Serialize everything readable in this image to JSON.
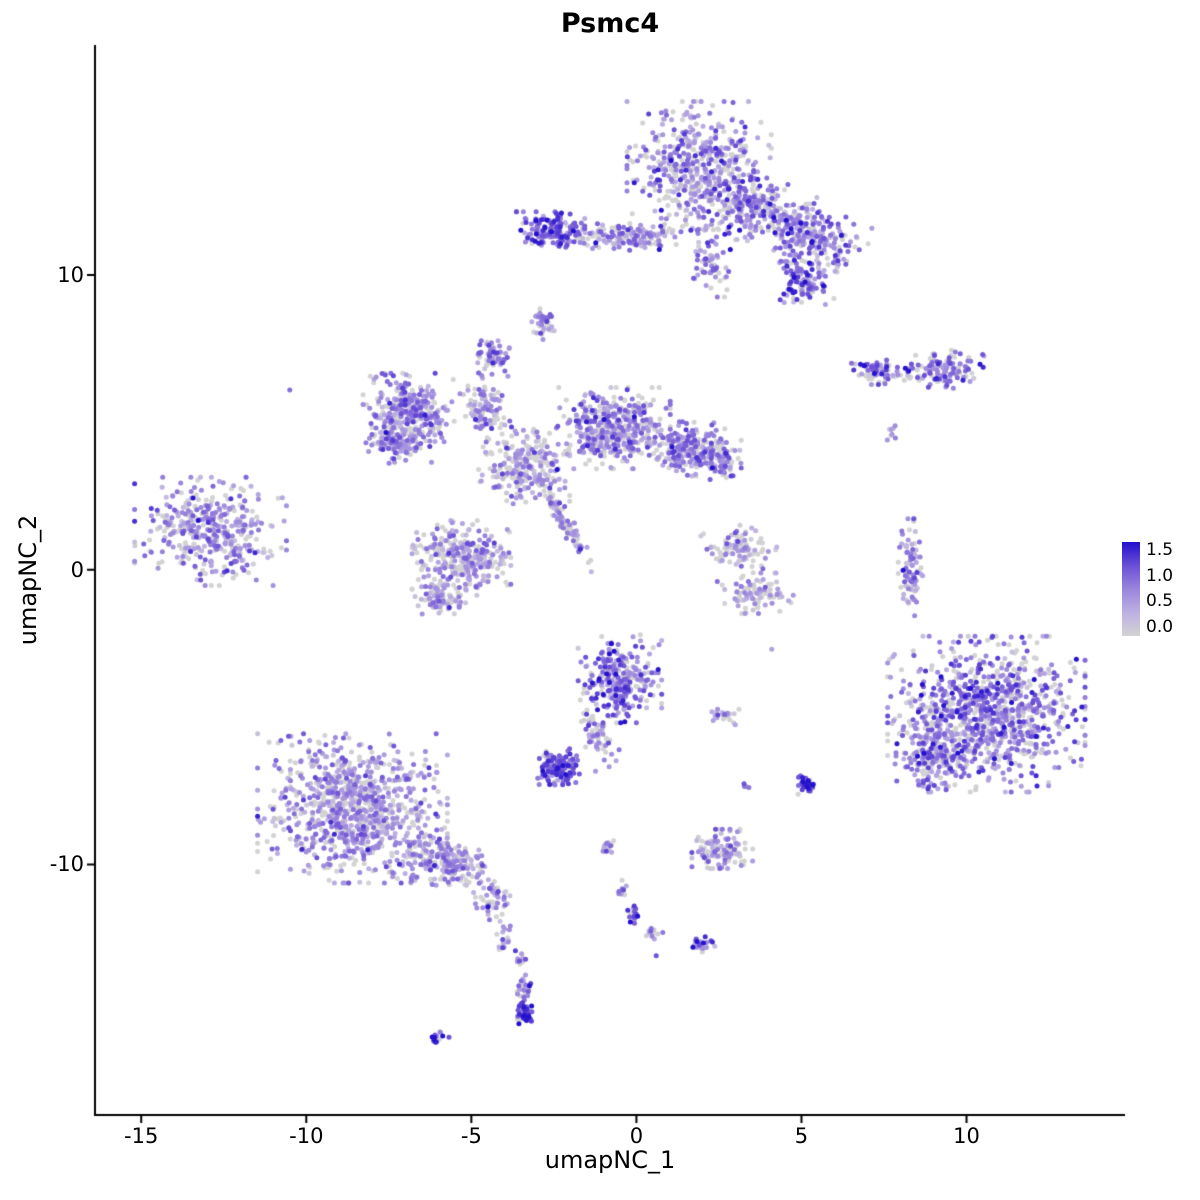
{
  "title": "Psmc4",
  "chart_data": {
    "type": "scatter",
    "title": "Psmc4",
    "xlabel": "umapNC_1",
    "ylabel": "umapNC_2",
    "xlim": [
      -16.4,
      14.8
    ],
    "ylim": [
      -18.5,
      17.8
    ],
    "x_ticks": [
      -15,
      -10,
      -5,
      0,
      5,
      10
    ],
    "y_ticks": [
      10,
      0,
      -10
    ],
    "grid": false,
    "background": "#FFFFFF",
    "axis_color": "#000000",
    "point_radius": 2.5,
    "seed": 20240917,
    "legend": {
      "position": "right",
      "min": 0.0,
      "max": 1.5,
      "tick_labels": [
        "1.5",
        "1.0",
        "0.5",
        "0.0"
      ],
      "gradient_stops": [
        "#D3D3D3",
        "#BDB0E2",
        "#9A85DC",
        "#6B4FD6",
        "#2410CE"
      ]
    },
    "clusters_format": "cx,cy=center (data coords); sx,sy=stddev; rot=deg; n=points; m,s=mean/sd expression (0-1.5); g=fraction zero-expression grey cells",
    "clusters": [
      {
        "name": "top-main",
        "cx": 1.9,
        "cy": 13.7,
        "sx": 0.95,
        "sy": 0.95,
        "rot": 0,
        "n": 520,
        "m": 0.7,
        "s": 0.35,
        "g": 0.3
      },
      {
        "name": "top-mid-right",
        "cx": 3.6,
        "cy": 12.2,
        "sx": 0.7,
        "sy": 0.5,
        "rot": -20,
        "n": 220,
        "m": 0.7,
        "s": 0.35,
        "g": 0.3
      },
      {
        "name": "top-right-wing",
        "cx": 5.3,
        "cy": 11.3,
        "sx": 0.75,
        "sy": 0.5,
        "rot": -25,
        "n": 230,
        "m": 0.7,
        "s": 0.35,
        "g": 0.28
      },
      {
        "name": "top-right-knob",
        "cx": 5.1,
        "cy": 9.8,
        "sx": 0.4,
        "sy": 0.35,
        "rot": 0,
        "n": 120,
        "m": 0.85,
        "s": 0.35,
        "g": 0.22
      },
      {
        "name": "top-left-arm",
        "cx": -2.6,
        "cy": 11.5,
        "sx": 0.45,
        "sy": 0.28,
        "rot": 0,
        "n": 150,
        "m": 1.0,
        "s": 0.3,
        "g": 0.12
      },
      {
        "name": "top-bridge",
        "cx": -0.3,
        "cy": 11.3,
        "sx": 0.95,
        "sy": 0.2,
        "rot": 0,
        "n": 170,
        "m": 0.7,
        "s": 0.3,
        "g": 0.3
      },
      {
        "name": "top-descender",
        "cx": 2.2,
        "cy": 10.4,
        "sx": 0.28,
        "sy": 0.5,
        "rot": 0,
        "n": 60,
        "m": 0.75,
        "s": 0.3,
        "g": 0.3
      },
      {
        "name": "top-left-dot",
        "cx": -2.8,
        "cy": 8.4,
        "sx": 0.16,
        "sy": 0.28,
        "rot": 0,
        "n": 35,
        "m": 0.7,
        "s": 0.3,
        "g": 0.3
      },
      {
        "name": "upper-right-a",
        "cx": 7.3,
        "cy": 6.7,
        "sx": 0.4,
        "sy": 0.18,
        "rot": 0,
        "n": 70,
        "m": 0.8,
        "s": 0.35,
        "g": 0.28
      },
      {
        "name": "upper-right-b",
        "cx": 9.3,
        "cy": 6.8,
        "sx": 0.6,
        "sy": 0.28,
        "rot": 0,
        "n": 120,
        "m": 0.8,
        "s": 0.35,
        "g": 0.28
      },
      {
        "name": "upper-right-specks",
        "cx": 7.8,
        "cy": 4.7,
        "sx": 0.1,
        "sy": 0.2,
        "rot": 0,
        "n": 8,
        "m": 0.5,
        "s": 0.25,
        "g": 0.4
      },
      {
        "name": "mid-left-lobe",
        "cx": -6.9,
        "cy": 5.4,
        "sx": 0.6,
        "sy": 0.55,
        "rot": 0,
        "n": 300,
        "m": 0.65,
        "s": 0.3,
        "g": 0.3
      },
      {
        "name": "mid-left-lower",
        "cx": -7.2,
        "cy": 4.3,
        "sx": 0.45,
        "sy": 0.3,
        "rot": 0,
        "n": 130,
        "m": 0.65,
        "s": 0.3,
        "g": 0.3
      },
      {
        "name": "mid-top-knob",
        "cx": -4.4,
        "cy": 7.2,
        "sx": 0.24,
        "sy": 0.3,
        "rot": 0,
        "n": 70,
        "m": 0.75,
        "s": 0.3,
        "g": 0.28
      },
      {
        "name": "mid-stem",
        "cx": -4.6,
        "cy": 5.4,
        "sx": 0.28,
        "sy": 0.55,
        "rot": 15,
        "n": 110,
        "m": 0.6,
        "s": 0.3,
        "g": 0.33
      },
      {
        "name": "mid-center",
        "cx": -3.4,
        "cy": 3.5,
        "sx": 0.6,
        "sy": 0.55,
        "rot": 0,
        "n": 240,
        "m": 0.55,
        "s": 0.3,
        "g": 0.38
      },
      {
        "name": "mid-right-lobe",
        "cx": -0.7,
        "cy": 4.8,
        "sx": 0.75,
        "sy": 0.6,
        "rot": 0,
        "n": 430,
        "m": 0.65,
        "s": 0.3,
        "g": 0.3
      },
      {
        "name": "mid-right-ext",
        "cx": 1.6,
        "cy": 4.1,
        "sx": 0.55,
        "sy": 0.4,
        "rot": 0,
        "n": 220,
        "m": 0.65,
        "s": 0.3,
        "g": 0.3
      },
      {
        "name": "mid-right-tip",
        "cx": 2.6,
        "cy": 3.7,
        "sx": 0.25,
        "sy": 0.3,
        "rot": 0,
        "n": 70,
        "m": 0.75,
        "s": 0.3,
        "g": 0.28
      },
      {
        "name": "mid-lower-lobe",
        "cx": -5.3,
        "cy": 0.4,
        "sx": 0.65,
        "sy": 0.55,
        "rot": 0,
        "n": 320,
        "m": 0.55,
        "s": 0.3,
        "g": 0.38
      },
      {
        "name": "mid-lower-tail",
        "cx": -5.9,
        "cy": -1.0,
        "sx": 0.35,
        "sy": 0.22,
        "rot": 0,
        "n": 90,
        "m": 0.55,
        "s": 0.3,
        "g": 0.35
      },
      {
        "name": "mid-streak",
        "cx": -2.2,
        "cy": 1.7,
        "sx": 0.85,
        "sy": 0.1,
        "rot": -62,
        "n": 90,
        "m": 0.6,
        "s": 0.3,
        "g": 0.33
      },
      {
        "name": "far-left",
        "cx": -12.9,
        "cy": 1.3,
        "sx": 1.0,
        "sy": 0.8,
        "rot": 0,
        "n": 400,
        "m": 0.62,
        "s": 0.3,
        "g": 0.3
      },
      {
        "name": "center-right-upper",
        "cx": 3.1,
        "cy": 0.7,
        "sx": 0.5,
        "sy": 0.35,
        "rot": 0,
        "n": 100,
        "m": 0.5,
        "s": 0.28,
        "g": 0.45
      },
      {
        "name": "center-right-lower",
        "cx": 3.6,
        "cy": -0.8,
        "sx": 0.5,
        "sy": 0.3,
        "rot": 0,
        "n": 90,
        "m": 0.5,
        "s": 0.28,
        "g": 0.45
      },
      {
        "name": "right-column",
        "cx": 8.3,
        "cy": 0.0,
        "sx": 0.16,
        "sy": 0.75,
        "rot": 0,
        "n": 90,
        "m": 0.65,
        "s": 0.35,
        "g": 0.3
      },
      {
        "name": "right-large",
        "cx": 10.6,
        "cy": -4.9,
        "sx": 1.3,
        "sy": 1.15,
        "rot": 0,
        "n": 950,
        "m": 0.8,
        "s": 0.35,
        "g": 0.27
      },
      {
        "name": "right-large-sub",
        "cx": 8.9,
        "cy": -6.4,
        "sx": 0.45,
        "sy": 0.45,
        "rot": 0,
        "n": 140,
        "m": 0.75,
        "s": 0.3,
        "g": 0.3
      },
      {
        "name": "center-lower",
        "cx": -0.5,
        "cy": -3.7,
        "sx": 0.55,
        "sy": 0.65,
        "rot": 0,
        "n": 280,
        "m": 0.8,
        "s": 0.35,
        "g": 0.25
      },
      {
        "name": "center-lower-tail",
        "cx": -1.2,
        "cy": -5.6,
        "sx": 0.2,
        "sy": 0.5,
        "rot": 20,
        "n": 60,
        "m": 0.65,
        "s": 0.3,
        "g": 0.3
      },
      {
        "name": "center-dense-blob",
        "cx": -2.4,
        "cy": -6.7,
        "sx": 0.3,
        "sy": 0.27,
        "rot": 0,
        "n": 140,
        "m": 0.95,
        "s": 0.35,
        "g": 0.14
      },
      {
        "name": "small-pair",
        "cx": 2.7,
        "cy": -5.0,
        "sx": 0.22,
        "sy": 0.13,
        "rot": 0,
        "n": 25,
        "m": 0.55,
        "s": 0.3,
        "g": 0.35
      },
      {
        "name": "dark-dot-right",
        "cx": 5.1,
        "cy": -7.3,
        "sx": 0.16,
        "sy": 0.15,
        "rot": 0,
        "n": 30,
        "m": 1.25,
        "s": 0.25,
        "g": 0.08
      },
      {
        "name": "tiny-dot",
        "cx": 3.3,
        "cy": -7.4,
        "sx": 0.08,
        "sy": 0.06,
        "rot": 0,
        "n": 5,
        "m": 0.6,
        "s": 0.3,
        "g": 0.3
      },
      {
        "name": "bottom-left-large",
        "cx": -8.6,
        "cy": -8.1,
        "sx": 1.25,
        "sy": 1.1,
        "rot": 0,
        "n": 900,
        "m": 0.62,
        "s": 0.3,
        "g": 0.32
      },
      {
        "name": "bottom-left-ext",
        "cx": -5.8,
        "cy": -9.9,
        "sx": 0.7,
        "sy": 0.4,
        "rot": -20,
        "n": 210,
        "m": 0.6,
        "s": 0.3,
        "g": 0.32
      },
      {
        "name": "bottom-left-tail",
        "cx": -4.3,
        "cy": -11.2,
        "sx": 0.25,
        "sy": 0.3,
        "rot": 0,
        "n": 50,
        "m": 0.55,
        "s": 0.3,
        "g": 0.35
      },
      {
        "name": "bottom-left-trail",
        "cx": -4.0,
        "cy": -12.4,
        "sx": 0.15,
        "sy": 0.3,
        "rot": 0,
        "n": 18,
        "m": 0.5,
        "s": 0.3,
        "g": 0.4
      },
      {
        "name": "bottom-center",
        "cx": 2.6,
        "cy": -9.5,
        "sx": 0.4,
        "sy": 0.3,
        "rot": 0,
        "n": 120,
        "m": 0.55,
        "s": 0.3,
        "g": 0.38
      },
      {
        "name": "chain-1",
        "cx": -0.9,
        "cy": -9.4,
        "sx": 0.14,
        "sy": 0.14,
        "rot": 0,
        "n": 15,
        "m": 0.65,
        "s": 0.3,
        "g": 0.3
      },
      {
        "name": "chain-2",
        "cx": -0.4,
        "cy": -10.9,
        "sx": 0.08,
        "sy": 0.16,
        "rot": 0,
        "n": 10,
        "m": 0.65,
        "s": 0.3,
        "g": 0.3
      },
      {
        "name": "chain-3",
        "cx": -0.1,
        "cy": -11.7,
        "sx": 0.12,
        "sy": 0.16,
        "rot": 0,
        "n": 18,
        "m": 0.95,
        "s": 0.35,
        "g": 0.18
      },
      {
        "name": "chain-4",
        "cx": 0.5,
        "cy": -12.3,
        "sx": 0.13,
        "sy": 0.1,
        "rot": 0,
        "n": 12,
        "m": 0.65,
        "s": 0.3,
        "g": 0.3
      },
      {
        "name": "chain-5",
        "cx": 2.0,
        "cy": -12.7,
        "sx": 0.2,
        "sy": 0.13,
        "rot": 0,
        "n": 26,
        "m": 0.9,
        "s": 0.35,
        "g": 0.2
      },
      {
        "name": "stem-1",
        "cx": -3.5,
        "cy": -13.2,
        "sx": 0.08,
        "sy": 0.16,
        "rot": 0,
        "n": 12,
        "m": 0.55,
        "s": 0.3,
        "g": 0.35
      },
      {
        "name": "stem-2",
        "cx": -3.4,
        "cy": -14.2,
        "sx": 0.11,
        "sy": 0.2,
        "rot": 0,
        "n": 25,
        "m": 0.7,
        "s": 0.3,
        "g": 0.3
      },
      {
        "name": "stem-3",
        "cx": -3.4,
        "cy": -15.1,
        "sx": 0.14,
        "sy": 0.2,
        "rot": 0,
        "n": 42,
        "m": 1.15,
        "s": 0.3,
        "g": 0.12
      },
      {
        "name": "bottom-tiny",
        "cx": -6.0,
        "cy": -15.9,
        "sx": 0.14,
        "sy": 0.1,
        "rot": 0,
        "n": 15,
        "m": 1.25,
        "s": 0.25,
        "g": 0.1
      }
    ],
    "singles": [
      {
        "x": -10.5,
        "y": 6.1,
        "v": 0.9
      },
      {
        "x": 0.6,
        "y": -13.1,
        "v": 1.1
      },
      {
        "x": 4.1,
        "y": -2.7,
        "v": 0.5
      }
    ]
  }
}
